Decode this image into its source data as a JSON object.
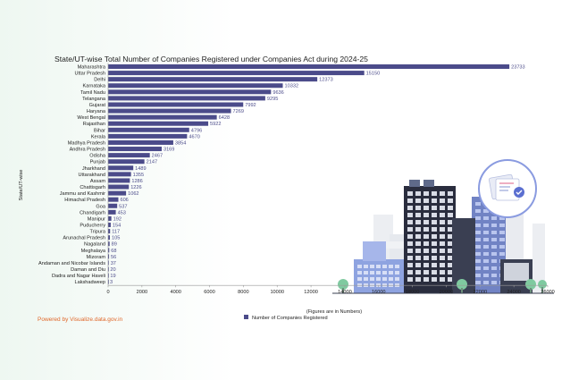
{
  "chart_data": {
    "type": "bar",
    "orientation": "horizontal",
    "title": "State/UT-wise Total Number of Companies Registered under Companies Act during 2024-25",
    "xlabel": "(Figures are in Numbers)",
    "ylabel": "State/UT-wise",
    "categories": [
      "Maharashtra",
      "Uttar Pradesh",
      "Delhi",
      "Karnataka",
      "Tamil Nadu",
      "Telangana",
      "Gujarat",
      "Haryana",
      "West Bengal",
      "Rajasthan",
      "Bihar",
      "Kerala",
      "Madhya Pradesh",
      "Andhra Pradesh",
      "Odisha",
      "Punjab",
      "Jharkhand",
      "Uttarakhand",
      "Assam",
      "Chattisgarh",
      "Jammu and Kashmir",
      "Himachal Pradesh",
      "Goa",
      "Chandigarh",
      "Manipur",
      "Puducherry",
      "Tripura",
      "Arunachal Pradesh",
      "Nagaland",
      "Meghalaya",
      "Mizoram",
      "Andaman and Nicobar Islands",
      "Daman and Diu",
      "Dadra and Nagar Haveli",
      "Lakshadweep"
    ],
    "series": [
      {
        "name": "Number of Companies Registered",
        "color": "#4b4b8a",
        "values": [
          23733,
          15150,
          12373,
          10332,
          9636,
          9295,
          7992,
          7269,
          6428,
          5922,
          4796,
          4670,
          3854,
          3169,
          2467,
          2147,
          1489,
          1355,
          1286,
          1226,
          1062,
          606,
          537,
          453,
          192,
          154,
          117,
          105,
          89,
          68,
          56,
          37,
          20,
          19,
          3
        ]
      }
    ],
    "xlim": [
      0,
      26000
    ],
    "xticks": [
      0,
      2000,
      4000,
      6000,
      8000,
      10000,
      12000,
      14000,
      16000,
      18000,
      20000,
      22000,
      24000,
      26000
    ],
    "grid": false,
    "legend_position": "bottom-center"
  },
  "footer": {
    "credit": "Powered by Visualize.data.gov.in"
  },
  "decoration": {
    "illustration": "city-buildings-with-document-check-icon"
  }
}
